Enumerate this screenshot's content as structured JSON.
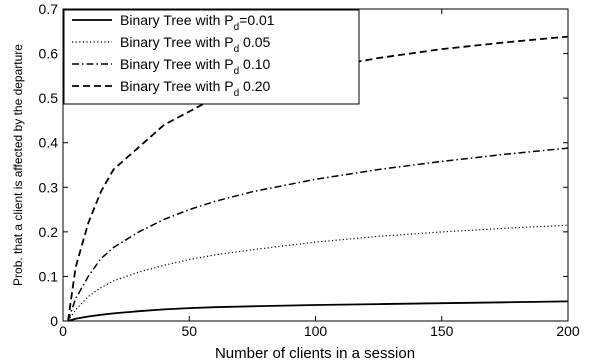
{
  "chart_data": {
    "type": "line",
    "title": "",
    "xlabel": "Number of clients in a session",
    "ylabel": "Prob. that a client is affected by the departure",
    "xlim": [
      0,
      200
    ],
    "ylim": [
      0,
      0.7
    ],
    "x_ticks": [
      0,
      50,
      100,
      150,
      200
    ],
    "x_tick_labels": [
      "0",
      "50",
      "100",
      "150",
      "200"
    ],
    "y_ticks": [
      0,
      0.1,
      0.2,
      0.3,
      0.4,
      0.5,
      0.6,
      0.7
    ],
    "y_tick_labels": [
      "0",
      "0.1",
      "0.2",
      "0.3",
      "0.4",
      "0.5",
      "0.6",
      "0.7"
    ],
    "grid": false,
    "legend_position": "top-left",
    "series": [
      {
        "name_prefix": "Binary Tree with P",
        "name_sub": "d",
        "name_suffix": "=0.01",
        "style": "solid",
        "x": [
          2,
          5,
          10,
          15,
          20,
          30,
          40,
          50,
          60,
          75,
          100,
          125,
          150,
          175,
          200
        ],
        "values": [
          0,
          0.005,
          0.01,
          0.014,
          0.017,
          0.022,
          0.026,
          0.029,
          0.031,
          0.033,
          0.036,
          0.038,
          0.04,
          0.042,
          0.044
        ]
      },
      {
        "name_prefix": "Binary Tree with P",
        "name_sub": "d",
        "name_suffix": " 0.05",
        "style": "dotted",
        "x": [
          2,
          5,
          10,
          15,
          20,
          30,
          40,
          50,
          60,
          75,
          100,
          125,
          150,
          175,
          200
        ],
        "values": [
          0,
          0.025,
          0.055,
          0.075,
          0.09,
          0.11,
          0.125,
          0.138,
          0.148,
          0.16,
          0.177,
          0.19,
          0.2,
          0.208,
          0.215
        ]
      },
      {
        "name_prefix": "Binary Tree with P",
        "name_sub": "d",
        "name_suffix": " 0.10",
        "style": "dashdot",
        "x": [
          2,
          5,
          10,
          15,
          20,
          30,
          40,
          50,
          60,
          75,
          100,
          125,
          150,
          175,
          200
        ],
        "values": [
          0,
          0.05,
          0.1,
          0.14,
          0.165,
          0.2,
          0.228,
          0.25,
          0.268,
          0.29,
          0.318,
          0.34,
          0.358,
          0.374,
          0.388
        ]
      },
      {
        "name_prefix": "Binary Tree with P",
        "name_sub": "d",
        "name_suffix": " 0.20",
        "style": "dashed",
        "x": [
          2,
          5,
          10,
          15,
          20,
          30,
          40,
          50,
          60,
          75,
          100,
          125,
          150,
          175,
          200
        ],
        "values": [
          0,
          0.12,
          0.22,
          0.29,
          0.34,
          0.39,
          0.44,
          0.47,
          0.5,
          0.53,
          0.565,
          0.59,
          0.61,
          0.625,
          0.638
        ]
      }
    ]
  }
}
